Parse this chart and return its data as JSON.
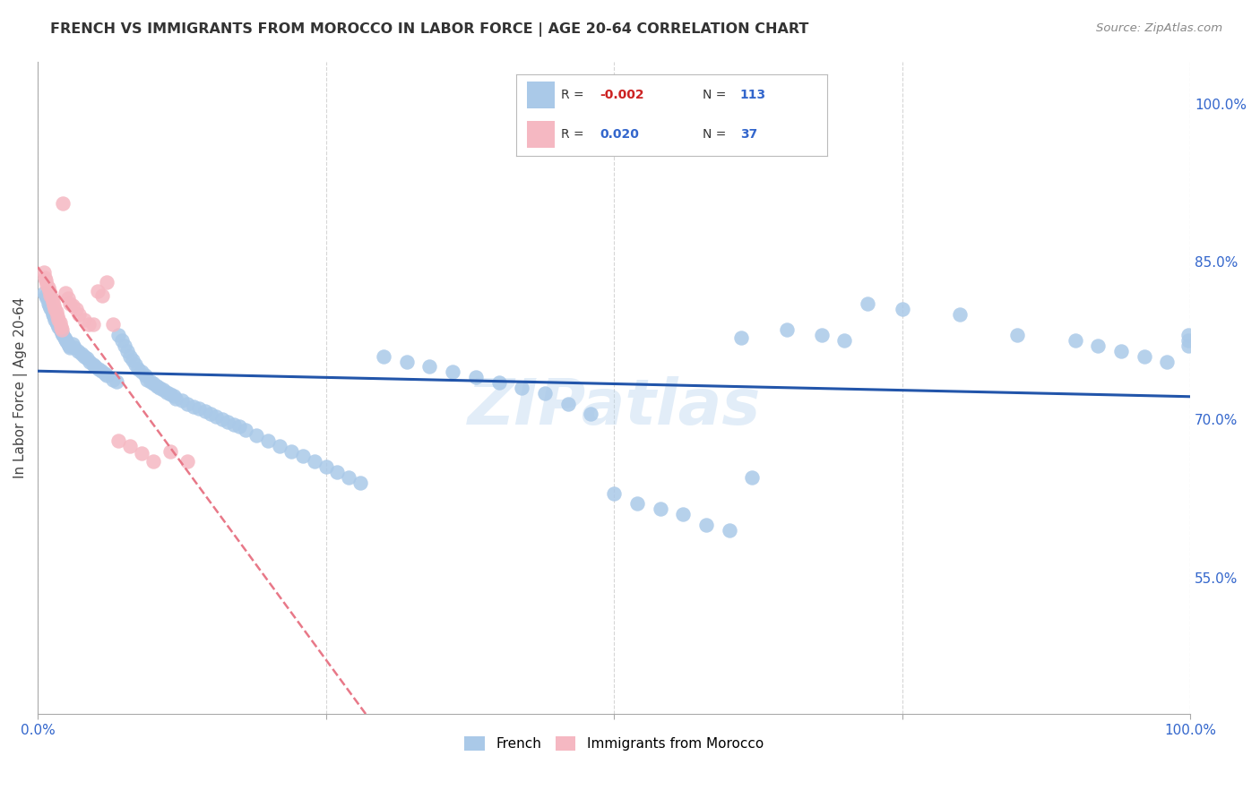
{
  "title": "FRENCH VS IMMIGRANTS FROM MOROCCO IN LABOR FORCE | AGE 20-64 CORRELATION CHART",
  "source": "Source: ZipAtlas.com",
  "ylabel": "In Labor Force | Age 20-64",
  "y_tick_positions_right": [
    1.0,
    0.85,
    0.7,
    0.55
  ],
  "xlim": [
    0.0,
    1.0
  ],
  "ylim": [
    0.42,
    1.04
  ],
  "legend_top": {
    "blue_r": "-0.002",
    "blue_n": "113",
    "pink_r": "0.020",
    "pink_n": "37"
  },
  "watermark": "ZIPatlas",
  "blue_color": "#aac9e8",
  "pink_color": "#f5b8c2",
  "blue_line_color": "#2255aa",
  "pink_line_color": "#e87888",
  "background_color": "#ffffff",
  "grid_color": "#cccccc",
  "french_x": [
    0.005,
    0.007,
    0.008,
    0.009,
    0.01,
    0.011,
    0.012,
    0.013,
    0.014,
    0.015,
    0.016,
    0.017,
    0.018,
    0.019,
    0.02,
    0.021,
    0.022,
    0.023,
    0.024,
    0.025,
    0.026,
    0.027,
    0.028,
    0.03,
    0.032,
    0.035,
    0.038,
    0.04,
    0.043,
    0.045,
    0.048,
    0.05,
    0.053,
    0.055,
    0.058,
    0.06,
    0.065,
    0.068,
    0.07,
    0.073,
    0.075,
    0.078,
    0.08,
    0.082,
    0.085,
    0.087,
    0.09,
    0.093,
    0.095,
    0.098,
    0.1,
    0.103,
    0.106,
    0.109,
    0.112,
    0.115,
    0.118,
    0.12,
    0.125,
    0.13,
    0.135,
    0.14,
    0.145,
    0.15,
    0.155,
    0.16,
    0.165,
    0.17,
    0.175,
    0.18,
    0.19,
    0.2,
    0.21,
    0.22,
    0.23,
    0.24,
    0.25,
    0.26,
    0.27,
    0.28,
    0.3,
    0.32,
    0.34,
    0.36,
    0.38,
    0.4,
    0.42,
    0.44,
    0.46,
    0.48,
    0.5,
    0.52,
    0.54,
    0.56,
    0.58,
    0.6,
    0.62,
    0.65,
    0.68,
    0.7,
    0.72,
    0.75,
    0.8,
    0.85,
    0.9,
    0.92,
    0.94,
    0.96,
    0.98,
    0.998,
    0.998,
    0.998,
    0.61
  ],
  "french_y": [
    0.82,
    0.818,
    0.815,
    0.81,
    0.808,
    0.806,
    0.803,
    0.8,
    0.798,
    0.795,
    0.792,
    0.79,
    0.788,
    0.786,
    0.784,
    0.782,
    0.78,
    0.778,
    0.776,
    0.774,
    0.772,
    0.77,
    0.768,
    0.772,
    0.768,
    0.765,
    0.762,
    0.76,
    0.758,
    0.755,
    0.752,
    0.75,
    0.748,
    0.746,
    0.744,
    0.742,
    0.738,
    0.736,
    0.78,
    0.775,
    0.77,
    0.765,
    0.76,
    0.756,
    0.752,
    0.748,
    0.745,
    0.742,
    0.738,
    0.736,
    0.734,
    0.732,
    0.73,
    0.728,
    0.726,
    0.724,
    0.722,
    0.72,
    0.718,
    0.715,
    0.712,
    0.71,
    0.708,
    0.705,
    0.703,
    0.7,
    0.698,
    0.695,
    0.693,
    0.69,
    0.685,
    0.68,
    0.675,
    0.67,
    0.665,
    0.66,
    0.655,
    0.65,
    0.645,
    0.64,
    0.76,
    0.755,
    0.75,
    0.745,
    0.74,
    0.735,
    0.73,
    0.725,
    0.715,
    0.705,
    0.63,
    0.62,
    0.615,
    0.61,
    0.6,
    0.595,
    0.645,
    0.785,
    0.78,
    0.775,
    0.81,
    0.805,
    0.8,
    0.78,
    0.775,
    0.77,
    0.765,
    0.76,
    0.755,
    0.78,
    0.775,
    0.77,
    0.778
  ],
  "morocco_x": [
    0.005,
    0.006,
    0.007,
    0.008,
    0.009,
    0.01,
    0.011,
    0.012,
    0.013,
    0.014,
    0.015,
    0.016,
    0.017,
    0.018,
    0.019,
    0.02,
    0.021,
    0.022,
    0.024,
    0.026,
    0.028,
    0.03,
    0.033,
    0.036,
    0.04,
    0.044,
    0.048,
    0.052,
    0.056,
    0.06,
    0.065,
    0.07,
    0.08,
    0.09,
    0.1,
    0.115,
    0.13
  ],
  "morocco_y": [
    0.84,
    0.835,
    0.832,
    0.828,
    0.825,
    0.822,
    0.818,
    0.815,
    0.812,
    0.808,
    0.805,
    0.802,
    0.798,
    0.795,
    0.792,
    0.788,
    0.785,
    0.905,
    0.82,
    0.815,
    0.81,
    0.808,
    0.805,
    0.8,
    0.795,
    0.79,
    0.79,
    0.822,
    0.818,
    0.83,
    0.79,
    0.68,
    0.675,
    0.668,
    0.66,
    0.67,
    0.66
  ]
}
